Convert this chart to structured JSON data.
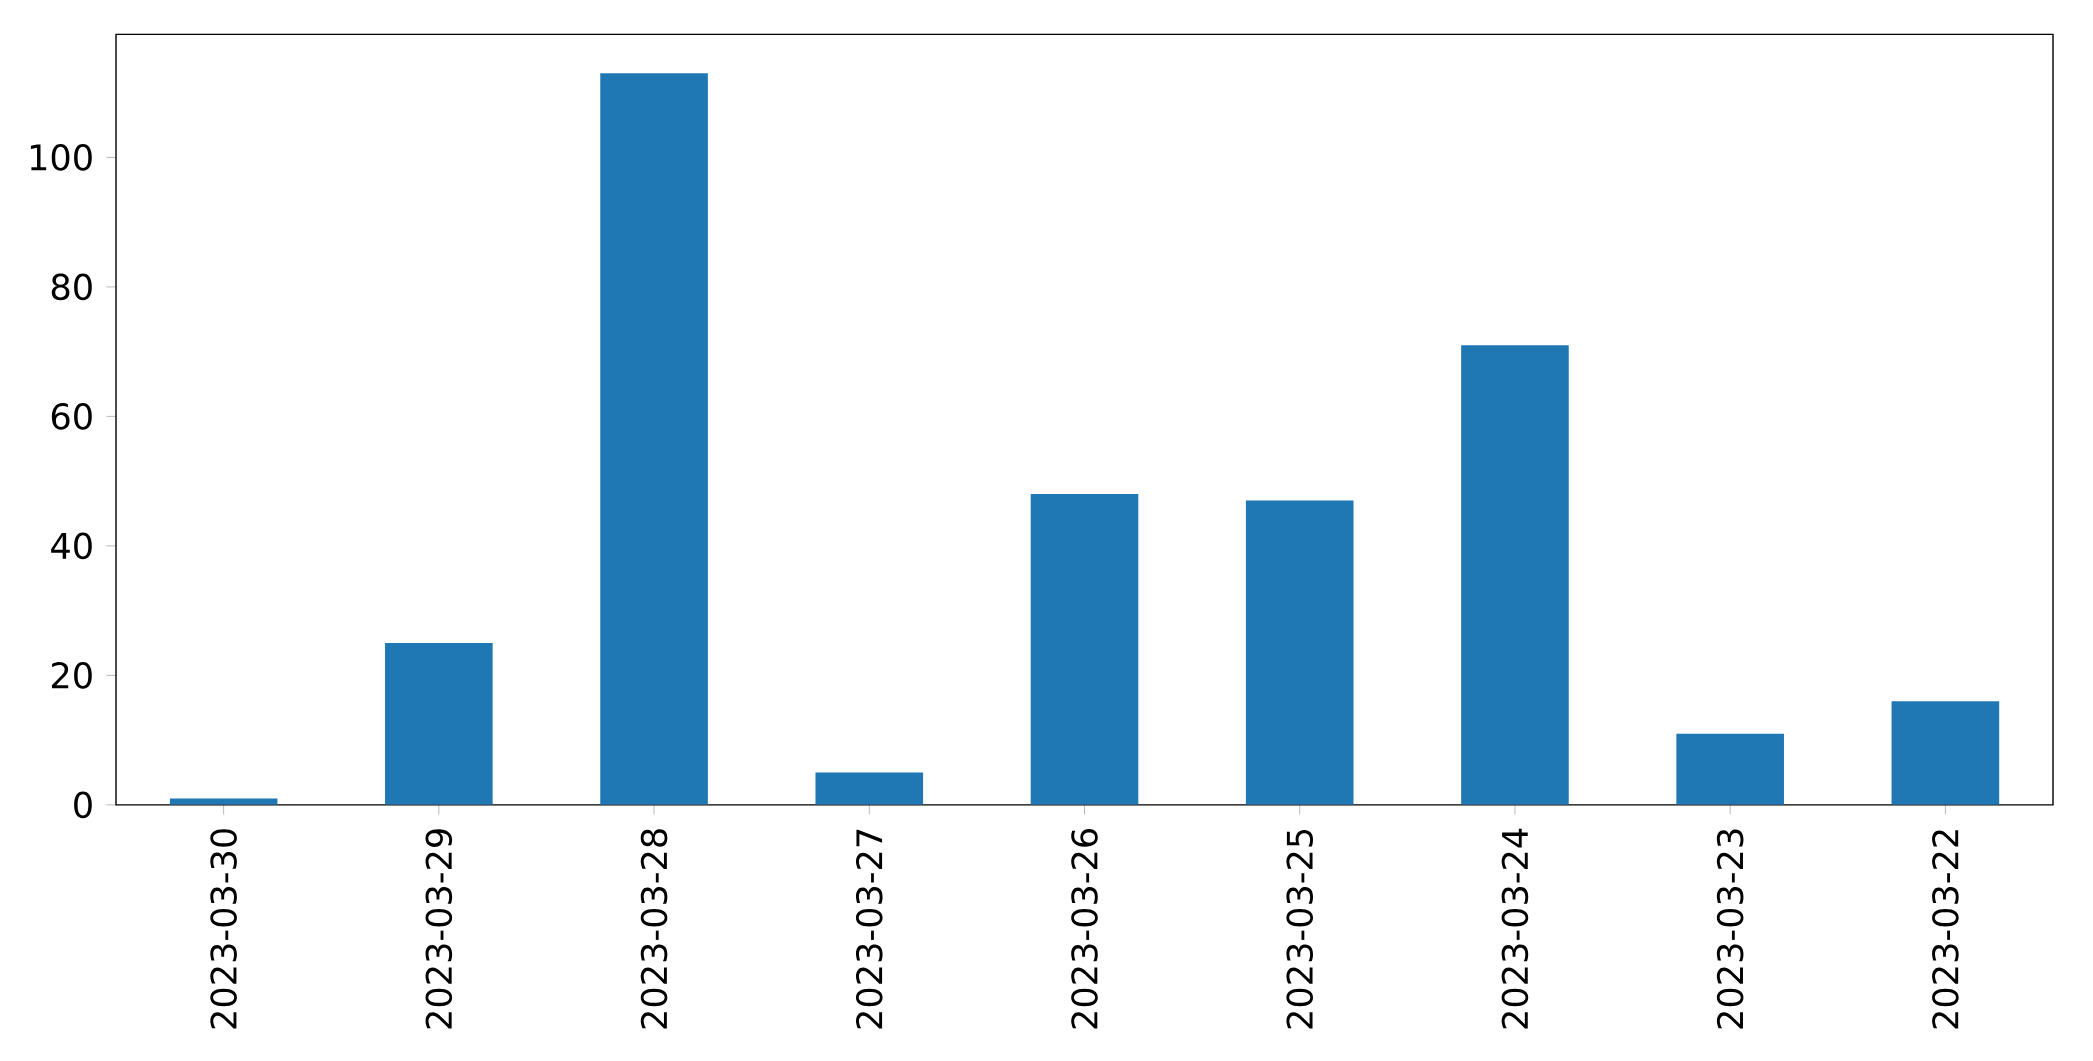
{
  "chart_data": {
    "type": "bar",
    "categories": [
      "2023-03-30",
      "2023-03-29",
      "2023-03-28",
      "2023-03-27",
      "2023-03-26",
      "2023-03-25",
      "2023-03-24",
      "2023-03-23",
      "2023-03-22"
    ],
    "values": [
      1,
      25,
      113,
      5,
      48,
      47,
      71,
      11,
      16
    ],
    "color": "#1f77b4",
    "ylim": [
      0,
      119
    ],
    "yticks": [
      0,
      20,
      40,
      60,
      80,
      100
    ]
  }
}
